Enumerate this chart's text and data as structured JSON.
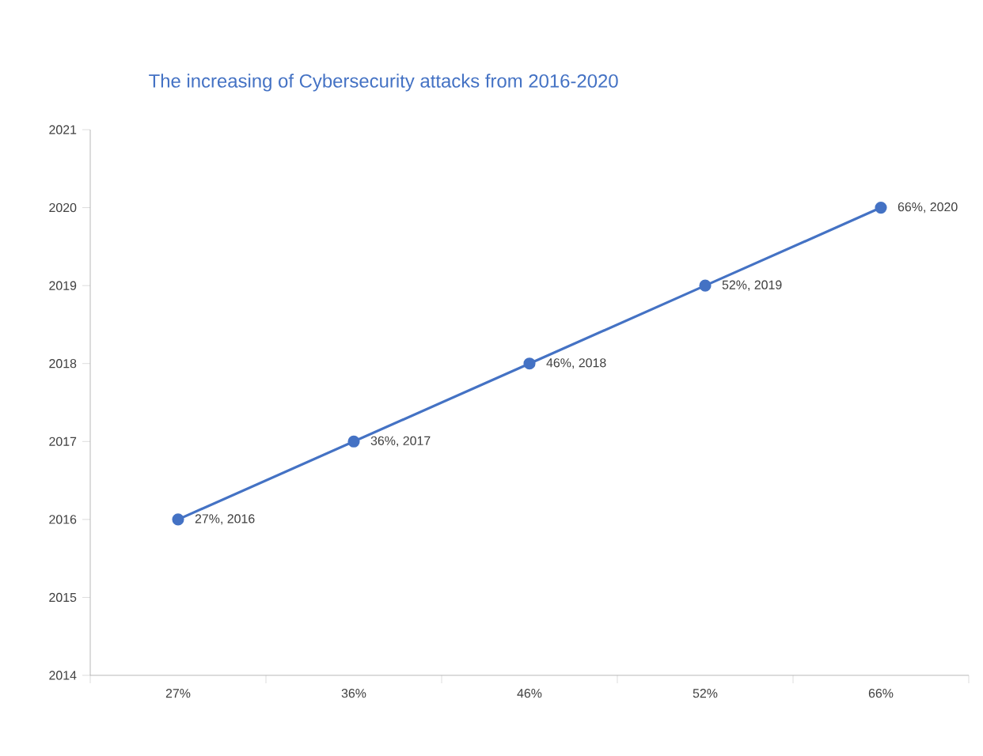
{
  "chart_data": {
    "type": "line",
    "title": "The increasing of Cybersecurity attacks from 2016-2020",
    "categories": [
      "27%",
      "36%",
      "46%",
      "52%",
      "66%"
    ],
    "series": [
      {
        "color": "#4472c4",
        "values": [
          2016,
          2017,
          2018,
          2019,
          2020
        ],
        "value_labels": [
          "27%, 2016",
          "36%, 2017",
          "46%, 2018",
          "52%, 2019",
          "66%, 2020"
        ]
      }
    ],
    "ylim": [
      2014,
      2021
    ],
    "yticks": [
      2014,
      2015,
      2016,
      2017,
      2018,
      2019,
      2020,
      2021
    ],
    "marker": "circle",
    "line_style": "solid"
  }
}
